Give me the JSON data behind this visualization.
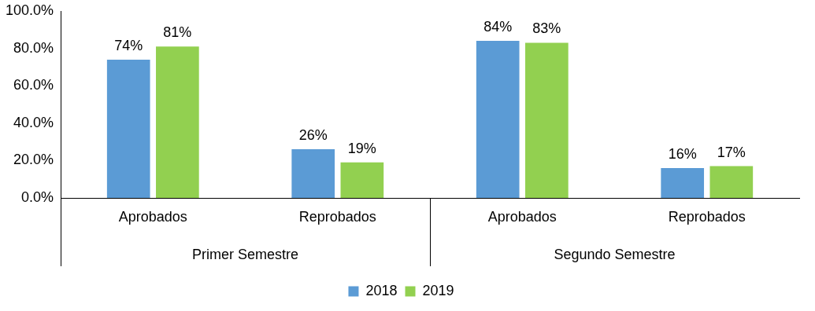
{
  "chart_data": {
    "type": "bar",
    "categories": [
      "Aprobados",
      "Reprobados",
      "Aprobados",
      "Reprobados"
    ],
    "series": [
      {
        "name": "2018",
        "color": "#5b9bd5",
        "values": [
          74,
          26,
          84,
          16
        ],
        "value_labels": [
          "74%",
          "26%",
          "84%",
          "16%"
        ]
      },
      {
        "name": "2019",
        "color": "#92d050",
        "values": [
          81,
          19,
          83,
          17
        ],
        "value_labels": [
          "81%",
          "19%",
          "83%",
          "17%"
        ]
      }
    ],
    "ylim": [
      0,
      100
    ],
    "yticks": [
      {
        "value": 0,
        "label": "0.0%"
      },
      {
        "value": 20,
        "label": "20.0%"
      },
      {
        "value": 40,
        "label": "40.0%"
      },
      {
        "value": 60,
        "label": "60.0%"
      },
      {
        "value": 80,
        "label": "80.0%"
      },
      {
        "value": 100,
        "label": "100.0%"
      }
    ],
    "annotations": [
      "Primer Semestre",
      "Segundo Semestre"
    ],
    "grid": false,
    "legend": "bottom"
  }
}
